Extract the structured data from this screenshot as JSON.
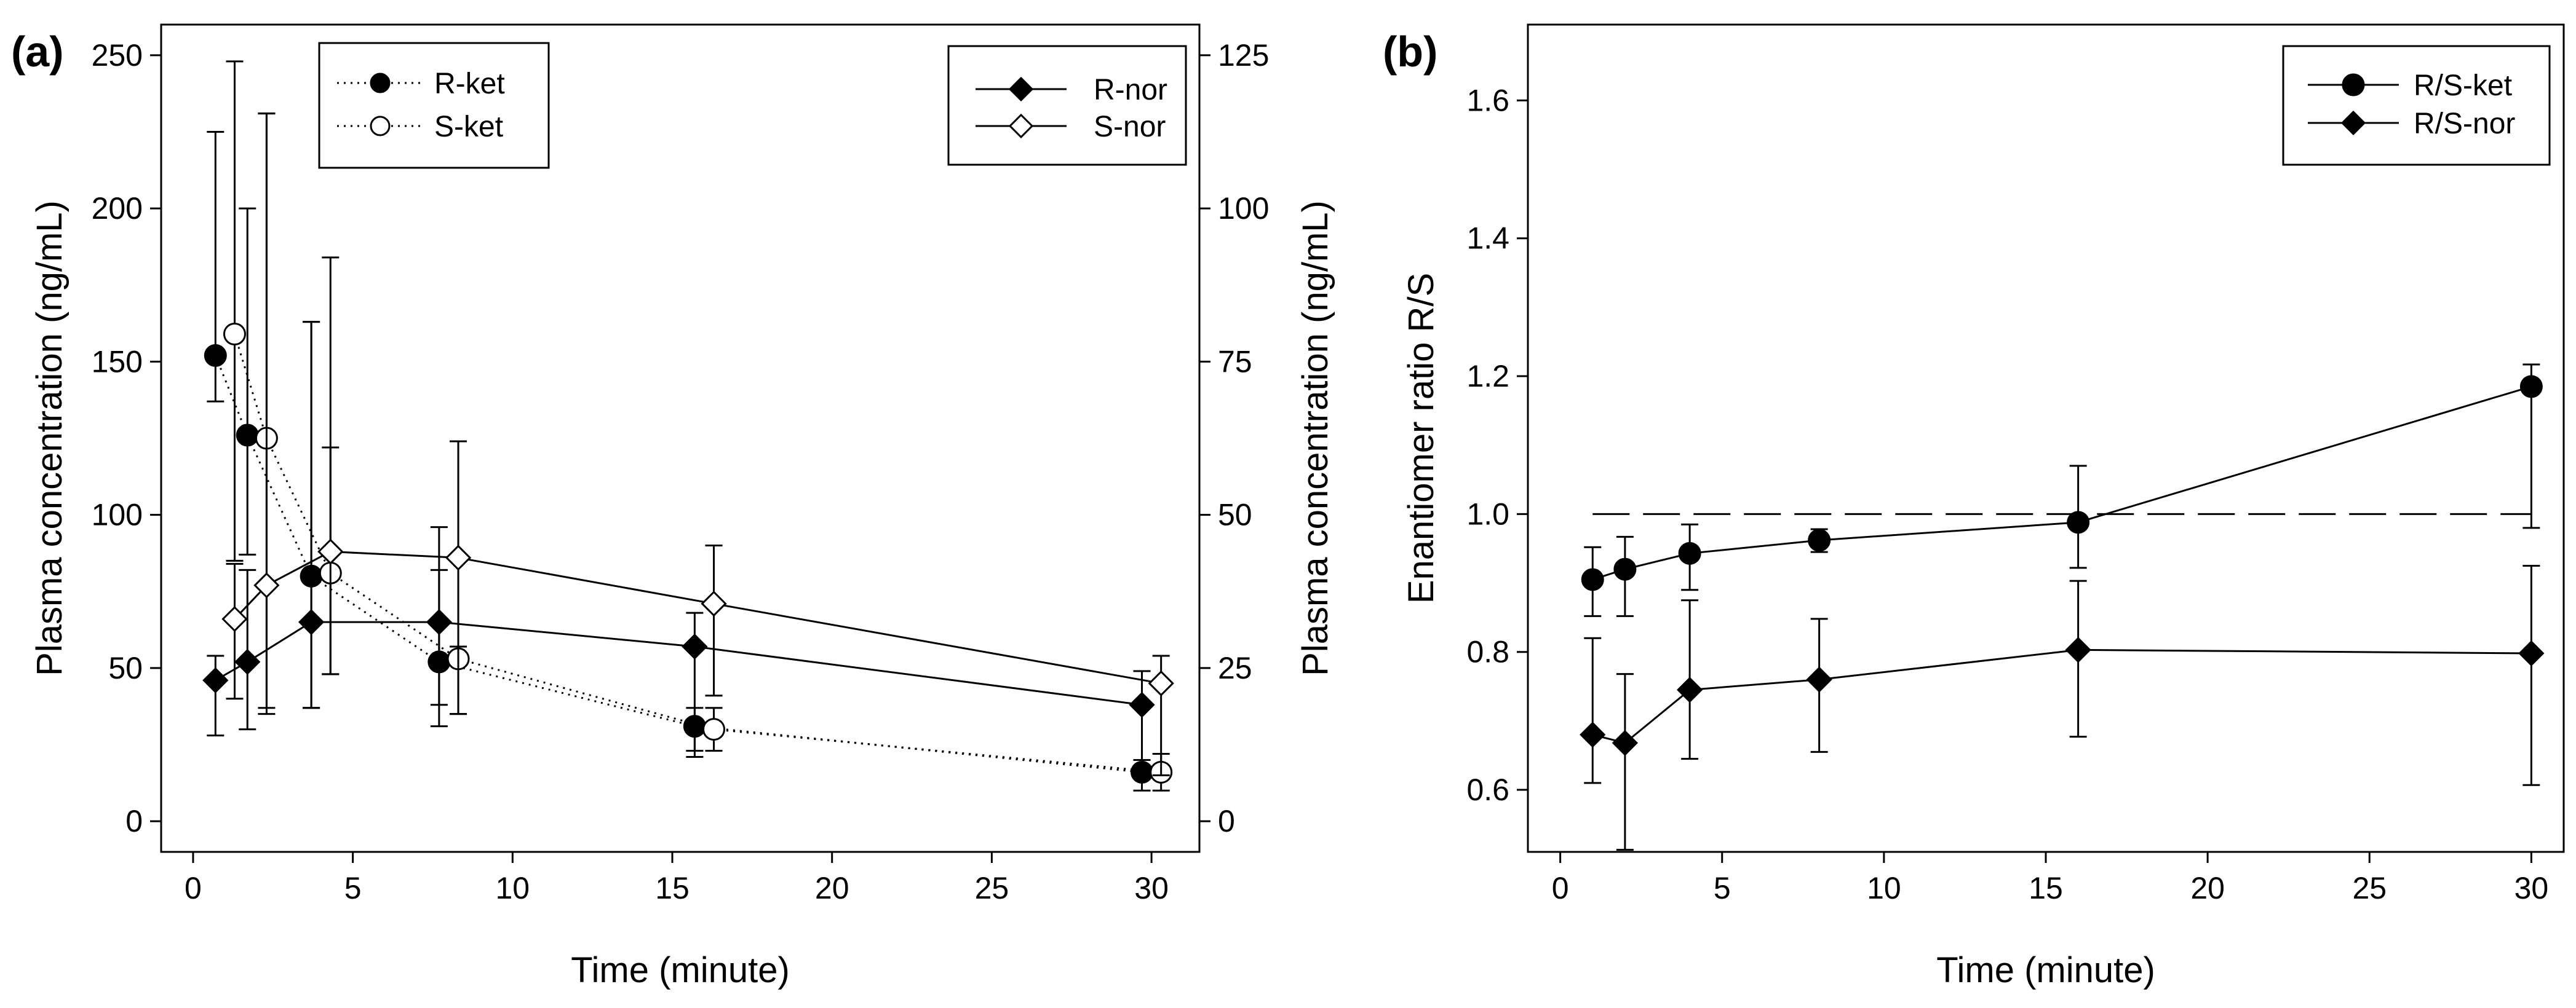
{
  "chart_data": [
    {
      "panel_label": "(a)",
      "type": "line",
      "xlabel": "Time (minute)",
      "ylabel_left": "Plasma concentration (ng/mL)",
      "ylabel_right": "Plasma concentration (ng/mL)",
      "xlim": [
        -1,
        31.5
      ],
      "xticks": [
        0,
        5,
        10,
        15,
        20,
        25,
        30
      ],
      "ylim_left": [
        -10,
        260
      ],
      "yticks_left": [
        0,
        50,
        100,
        150,
        200,
        250
      ],
      "ylim_right": [
        -5,
        130
      ],
      "yticks_right": [
        0,
        25,
        50,
        75,
        100,
        125
      ],
      "legends": [
        {
          "position": "top-left",
          "entries": [
            "R-ket",
            "S-ket"
          ]
        },
        {
          "position": "top-right",
          "entries": [
            "R-nor",
            "S-nor"
          ]
        }
      ],
      "series": [
        {
          "name": "R-ket",
          "axis": "left",
          "marker": "circle-filled",
          "line": "dotted",
          "x": [
            0.7,
            1.7,
            3.7,
            7.7,
            15.7,
            29.7
          ],
          "y": [
            152,
            126,
            80,
            52,
            31,
            16
          ],
          "err_low": [
            137,
            87,
            37,
            38,
            21,
            10
          ],
          "err_high": [
            225,
            200,
            163,
            82,
            37,
            20
          ]
        },
        {
          "name": "S-ket",
          "axis": "left",
          "marker": "circle-open",
          "line": "dotted",
          "x": [
            1.3,
            2.3,
            4.3,
            8.3,
            16.3,
            30.3
          ],
          "y": [
            159,
            125,
            81,
            53,
            30,
            16
          ],
          "err_low": [
            85,
            37,
            48,
            35,
            23,
            10
          ],
          "err_high": [
            248,
            231,
            122,
            57,
            37,
            22
          ]
        },
        {
          "name": "R-nor",
          "axis": "right",
          "marker": "diamond-filled",
          "line": "solid",
          "x": [
            0.7,
            1.7,
            3.7,
            7.7,
            15.7,
            29.7
          ],
          "y": [
            23,
            26,
            32.5,
            32.5,
            28.5,
            19
          ],
          "err_low": [
            14,
            15,
            18.5,
            15.5,
            11.5,
            7.5
          ],
          "err_high": [
            27,
            41,
            81.5,
            48,
            34,
            24.5
          ]
        },
        {
          "name": "S-nor",
          "axis": "right",
          "marker": "diamond-open",
          "line": "solid",
          "x": [
            1.3,
            2.3,
            4.3,
            8.3,
            16.3,
            30.3
          ],
          "y": [
            33,
            38.5,
            44,
            43,
            35.5,
            22.5
          ],
          "err_low": [
            20,
            17.5,
            24,
            17.5,
            20.5,
            7.5
          ],
          "err_high": [
            42,
            115.5,
            92,
            62,
            45,
            27
          ]
        }
      ]
    },
    {
      "panel_label": "(b)",
      "type": "line",
      "xlabel": "Time (minute)",
      "ylabel": "Enantiomer ratio R/S",
      "xlim": [
        -1,
        31
      ],
      "xticks": [
        0,
        5,
        10,
        15,
        20,
        25,
        30
      ],
      "ylim": [
        0.51,
        1.71
      ],
      "yticks": [
        0.6,
        0.8,
        1.0,
        1.2,
        1.4,
        1.6
      ],
      "ytick_labels": [
        "0.6",
        "0.8",
        "1.0",
        "1.2",
        "1.4",
        "1.6"
      ],
      "reference_line": {
        "y": 1.0,
        "style": "dashed",
        "x_range": [
          1,
          30
        ]
      },
      "legends": [
        {
          "position": "top-right",
          "entries": [
            "R/S-ket",
            "R/S-nor"
          ]
        }
      ],
      "series": [
        {
          "name": "R/S-ket",
          "marker": "circle-filled",
          "line": "solid",
          "x": [
            1,
            2,
            4,
            8,
            16,
            30
          ],
          "y": [
            0.905,
            0.92,
            0.943,
            0.962,
            0.988,
            1.185
          ],
          "err_low": [
            0.852,
            0.852,
            0.89,
            0.945,
            0.922,
            0.98
          ],
          "err_high": [
            0.952,
            0.967,
            0.985,
            0.978,
            1.07,
            1.217
          ]
        },
        {
          "name": "R/S-nor",
          "marker": "diamond-filled",
          "line": "solid",
          "x": [
            1,
            2,
            4,
            8,
            16,
            30
          ],
          "y": [
            0.68,
            0.668,
            0.745,
            0.76,
            0.803,
            0.798
          ],
          "err_low": [
            0.61,
            0.513,
            0.645,
            0.655,
            0.677,
            0.607
          ],
          "err_high": [
            0.82,
            0.768,
            0.875,
            0.848,
            0.903,
            0.925
          ]
        }
      ]
    }
  ]
}
